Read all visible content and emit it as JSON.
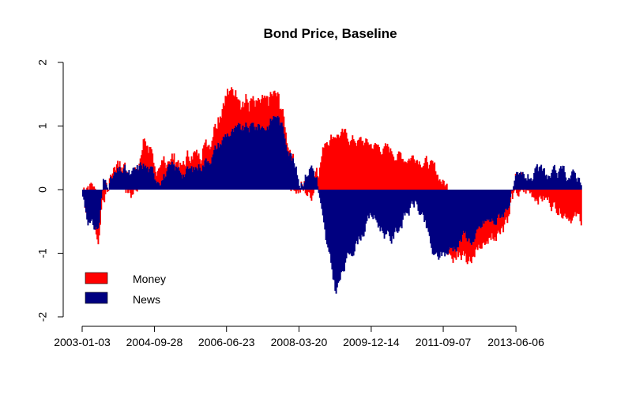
{
  "chart_data": {
    "type": "bar",
    "stacked": true,
    "title": "Bond Price, Baseline",
    "xlabel": "",
    "ylabel": "",
    "ylim": [
      -2,
      2
    ],
    "y_ticks": [
      -2,
      -1,
      0,
      1,
      2
    ],
    "y_tick_labels": [
      "-2",
      "-1",
      "0",
      "1",
      "2"
    ],
    "x_range": [
      "2003-01-03",
      "2015-01-02"
    ],
    "x_ticks": [
      "2003-01-03",
      "2004-09-28",
      "2006-06-23",
      "2008-03-20",
      "2009-12-14",
      "2011-09-07",
      "2013-06-06"
    ],
    "grid": false,
    "legend_position": "bottom-left",
    "series": [
      {
        "name": "Money",
        "color": "#ff0000",
        "keypoints": [
          [
            "2003-01-03",
            0.0
          ],
          [
            "2003-02-10",
            0.1
          ],
          [
            "2003-04-01",
            0.1
          ],
          [
            "2003-05-20",
            -0.2
          ],
          [
            "2003-07-01",
            -0.1
          ],
          [
            "2003-10-01",
            0.1
          ],
          [
            "2004-01-01",
            0.1
          ],
          [
            "2004-03-01",
            -0.1
          ],
          [
            "2004-05-01",
            0.05
          ],
          [
            "2004-06-15",
            0.4
          ],
          [
            "2004-10-01",
            0.2
          ],
          [
            "2005-03-01",
            0.1
          ],
          [
            "2005-09-01",
            0.2
          ],
          [
            "2006-03-01",
            0.4
          ],
          [
            "2006-06-23",
            0.7
          ],
          [
            "2006-10-01",
            0.5
          ],
          [
            "2007-03-01",
            0.3
          ],
          [
            "2007-06-01",
            0.4
          ],
          [
            "2007-09-01",
            0.3
          ],
          [
            "2008-01-01",
            0.1
          ],
          [
            "2008-03-20",
            0.0
          ],
          [
            "2008-07-01",
            -0.1
          ],
          [
            "2008-08-15",
            0.2
          ],
          [
            "2008-11-01",
            0.8
          ],
          [
            "2009-02-01",
            0.9
          ],
          [
            "2009-06-01",
            0.8
          ],
          [
            "2009-12-14",
            0.7
          ],
          [
            "2010-06-01",
            0.6
          ],
          [
            "2010-10-01",
            0.5
          ],
          [
            "2011-01-01",
            0.55
          ],
          [
            "2011-04-01",
            0.45
          ],
          [
            "2011-06-15",
            0.3
          ],
          [
            "2011-09-07",
            0.1
          ],
          [
            "2011-12-01",
            -0.05
          ],
          [
            "2012-03-01",
            -0.2
          ],
          [
            "2012-06-01",
            -0.3
          ],
          [
            "2012-09-01",
            -0.35
          ],
          [
            "2012-12-01",
            -0.2
          ],
          [
            "2013-03-01",
            -0.1
          ],
          [
            "2013-06-06",
            -0.1
          ],
          [
            "2013-09-01",
            -0.05
          ],
          [
            "2014-01-01",
            -0.1
          ],
          [
            "2014-04-01",
            -0.2
          ],
          [
            "2014-07-01",
            -0.3
          ],
          [
            "2014-12-31",
            -0.5
          ]
        ]
      },
      {
        "name": "News",
        "color": "#000080",
        "keypoints": [
          [
            "2003-01-03",
            -0.1
          ],
          [
            "2003-02-10",
            -0.4
          ],
          [
            "2003-04-01",
            -0.6
          ],
          [
            "2003-05-20",
            -0.6
          ],
          [
            "2003-07-01",
            0.1
          ],
          [
            "2003-10-01",
            0.2
          ],
          [
            "2004-01-01",
            0.3
          ],
          [
            "2004-03-01",
            0.2
          ],
          [
            "2004-05-01",
            0.3
          ],
          [
            "2004-06-15",
            0.4
          ],
          [
            "2004-10-01",
            0.2
          ],
          [
            "2005-03-01",
            0.3
          ],
          [
            "2005-09-01",
            0.3
          ],
          [
            "2006-03-01",
            0.6
          ],
          [
            "2006-06-23",
            0.9
          ],
          [
            "2006-10-01",
            0.9
          ],
          [
            "2007-03-01",
            1.0
          ],
          [
            "2007-06-01",
            1.0
          ],
          [
            "2007-09-01",
            1.2
          ],
          [
            "2008-01-01",
            0.6
          ],
          [
            "2008-03-20",
            0.1
          ],
          [
            "2008-07-01",
            0.4
          ],
          [
            "2008-08-15",
            0.2
          ],
          [
            "2008-11-01",
            -0.8
          ],
          [
            "2009-02-01",
            -1.6
          ],
          [
            "2009-06-01",
            -1.0
          ],
          [
            "2009-12-14",
            -0.4
          ],
          [
            "2010-06-01",
            -0.8
          ],
          [
            "2010-10-01",
            -0.4
          ],
          [
            "2011-01-01",
            -0.2
          ],
          [
            "2011-04-01",
            -0.6
          ],
          [
            "2011-06-15",
            -1.1
          ],
          [
            "2011-09-07",
            -1.0
          ],
          [
            "2011-12-01",
            -0.9
          ],
          [
            "2012-03-01",
            -0.7
          ],
          [
            "2012-06-01",
            -0.8
          ],
          [
            "2012-09-01",
            -0.5
          ],
          [
            "2012-12-01",
            -0.5
          ],
          [
            "2013-03-01",
            -0.3
          ],
          [
            "2013-06-06",
            0.1
          ],
          [
            "2013-09-01",
            0.2
          ],
          [
            "2014-01-01",
            0.25
          ],
          [
            "2014-04-01",
            0.2
          ],
          [
            "2014-07-01",
            0.25
          ],
          [
            "2014-12-31",
            0.2
          ]
        ]
      }
    ]
  }
}
